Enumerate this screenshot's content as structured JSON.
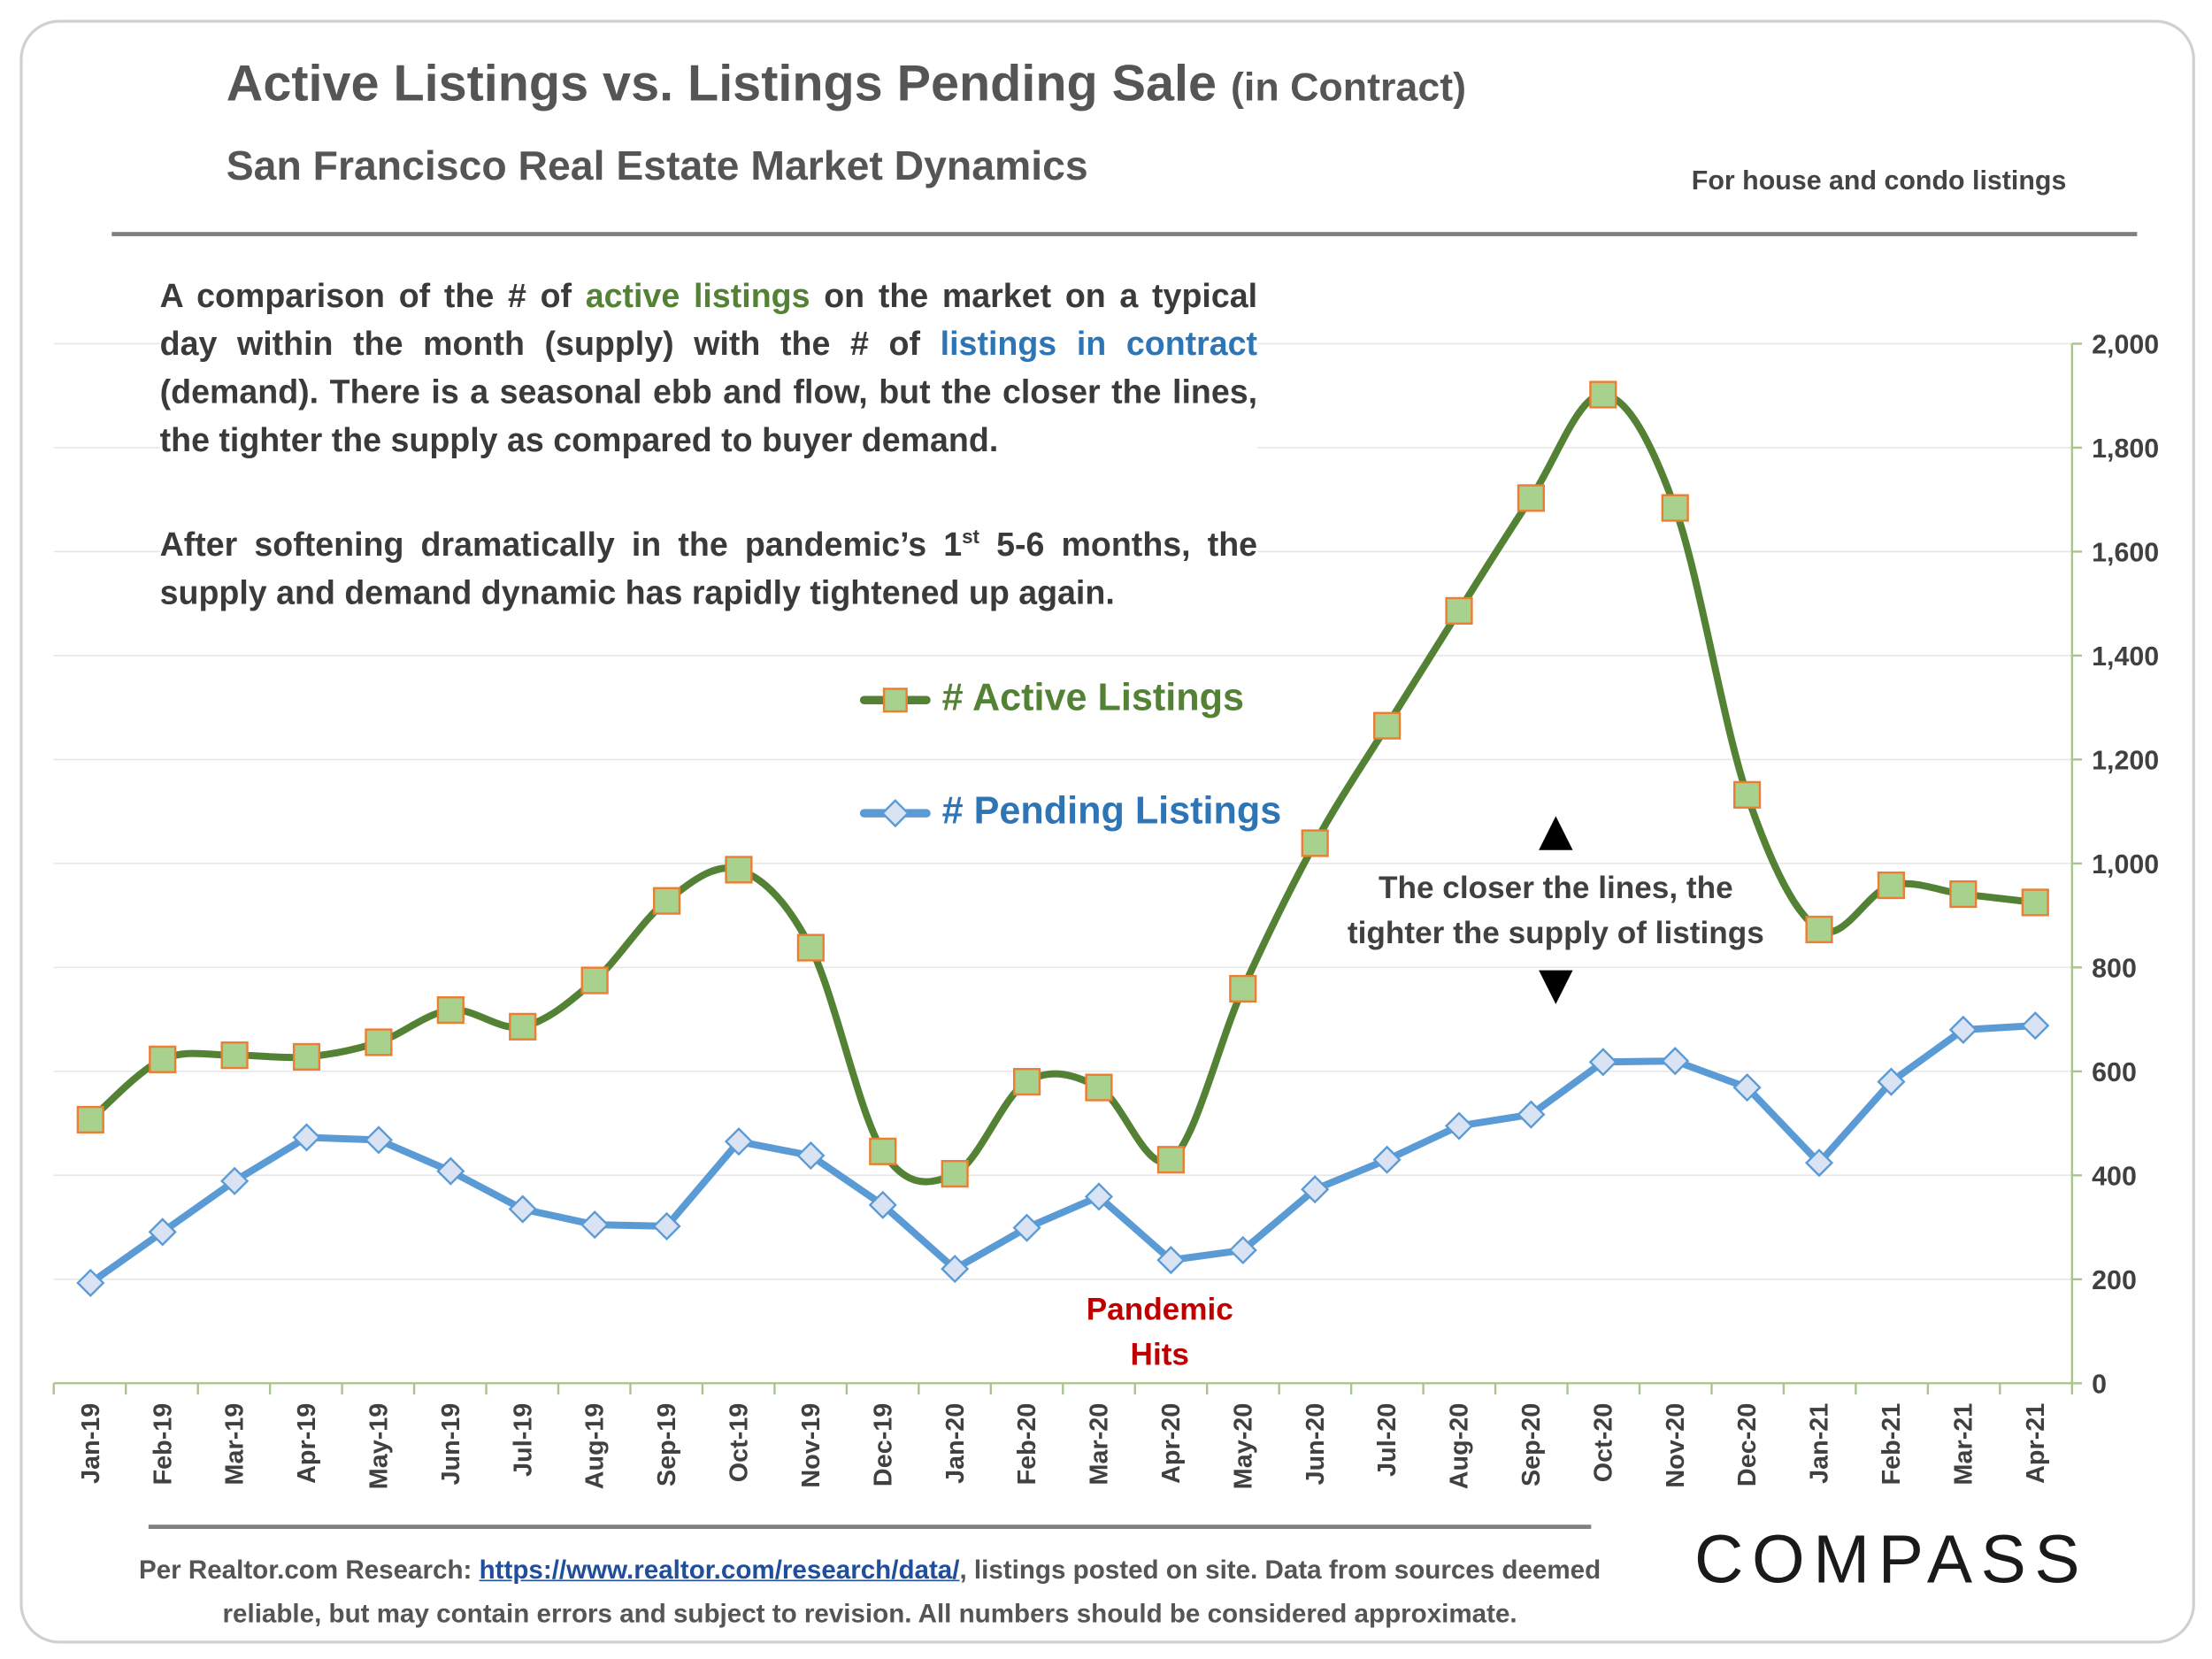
{
  "title": "Active Listings vs. Listings Pending Sale",
  "title_suffix": "(in Contract)",
  "subtitle": "San Francisco Real Estate Market Dynamics",
  "note": "For house and condo listings",
  "para1": {
    "a": "A comparison of the # of ",
    "b": "active listings",
    "c": " on the market on a typical day within the month (supply) with the # of ",
    "d": "listings in contract",
    "e": " (demand). There is a seasonal ebb and flow, but the closer the lines, the tighter the supply as compared to buyer demand."
  },
  "para2": {
    "a": "After softening dramatically in the pandemic’s 1",
    "sup": "st",
    "b": " 5-6 months, the supply and demand dynamic has rapidly tightened up again."
  },
  "annotation": {
    "line1": "The closer the lines, the",
    "line2": "tighter the supply of listings"
  },
  "pandemic": {
    "line1": "Pandemic",
    "line2": "Hits"
  },
  "footer": {
    "a": "Per Realtor.com Research:  ",
    "link": "https://www.realtor.com/research/data/",
    "b": ", listings posted on site. Data from sources deemed reliable, but may contain errors and subject to revision. All numbers should be considered approximate."
  },
  "logo": "COMPASS",
  "colors": {
    "active": "#548235",
    "active_marker": "#a9d18e",
    "active_marker_border": "#ed7d31",
    "pending": "#5b9bd5",
    "pending_marker": "#dae3f3",
    "pandemic": "#c00000"
  },
  "chart_data": {
    "type": "line",
    "categories": [
      "Jan-19",
      "Feb-19",
      "Mar-19",
      "Apr-19",
      "May-19",
      "Jun-19",
      "Jul-19",
      "Aug-19",
      "Sep-19",
      "Oct-19",
      "Nov-19",
      "Dec-19",
      "Jan-20",
      "Feb-20",
      "Mar-20",
      "Apr-20",
      "May-20",
      "Jun-20",
      "Jul-20",
      "Aug-20",
      "Sep-20",
      "Oct-20",
      "Nov-20",
      "Dec-20",
      "Jan-21",
      "Feb-21",
      "Mar-21",
      "Apr-21"
    ],
    "series": [
      {
        "name": "# Active Listings",
        "marker": "square",
        "smooth": true,
        "values": [
          507,
          623,
          631,
          628,
          656,
          718,
          686,
          775,
          928,
          988,
          838,
          446,
          403,
          580,
          569,
          430,
          759,
          1039,
          1265,
          1486,
          1703,
          1902,
          1684,
          1132,
          873,
          958,
          941,
          925
        ]
      },
      {
        "name": "# Pending Listings",
        "marker": "diamond",
        "smooth": false,
        "values": [
          193,
          291,
          389,
          473,
          468,
          408,
          335,
          305,
          302,
          465,
          438,
          343,
          220,
          299,
          359,
          237,
          256,
          373,
          430,
          495,
          517,
          618,
          620,
          569,
          424,
          580,
          680,
          688
        ]
      }
    ],
    "ylim": [
      0,
      2000
    ],
    "yticks": [
      0,
      200,
      400,
      600,
      800,
      1000,
      1200,
      1400,
      1600,
      1800,
      2000
    ],
    "ytick_labels": [
      "0",
      "200",
      "400",
      "600",
      "800",
      "1,000",
      "1,200",
      "1,400",
      "1,600",
      "1,800",
      "2,000"
    ],
    "y_axis_side": "right",
    "grid": true,
    "legend_placement": "center-left"
  }
}
